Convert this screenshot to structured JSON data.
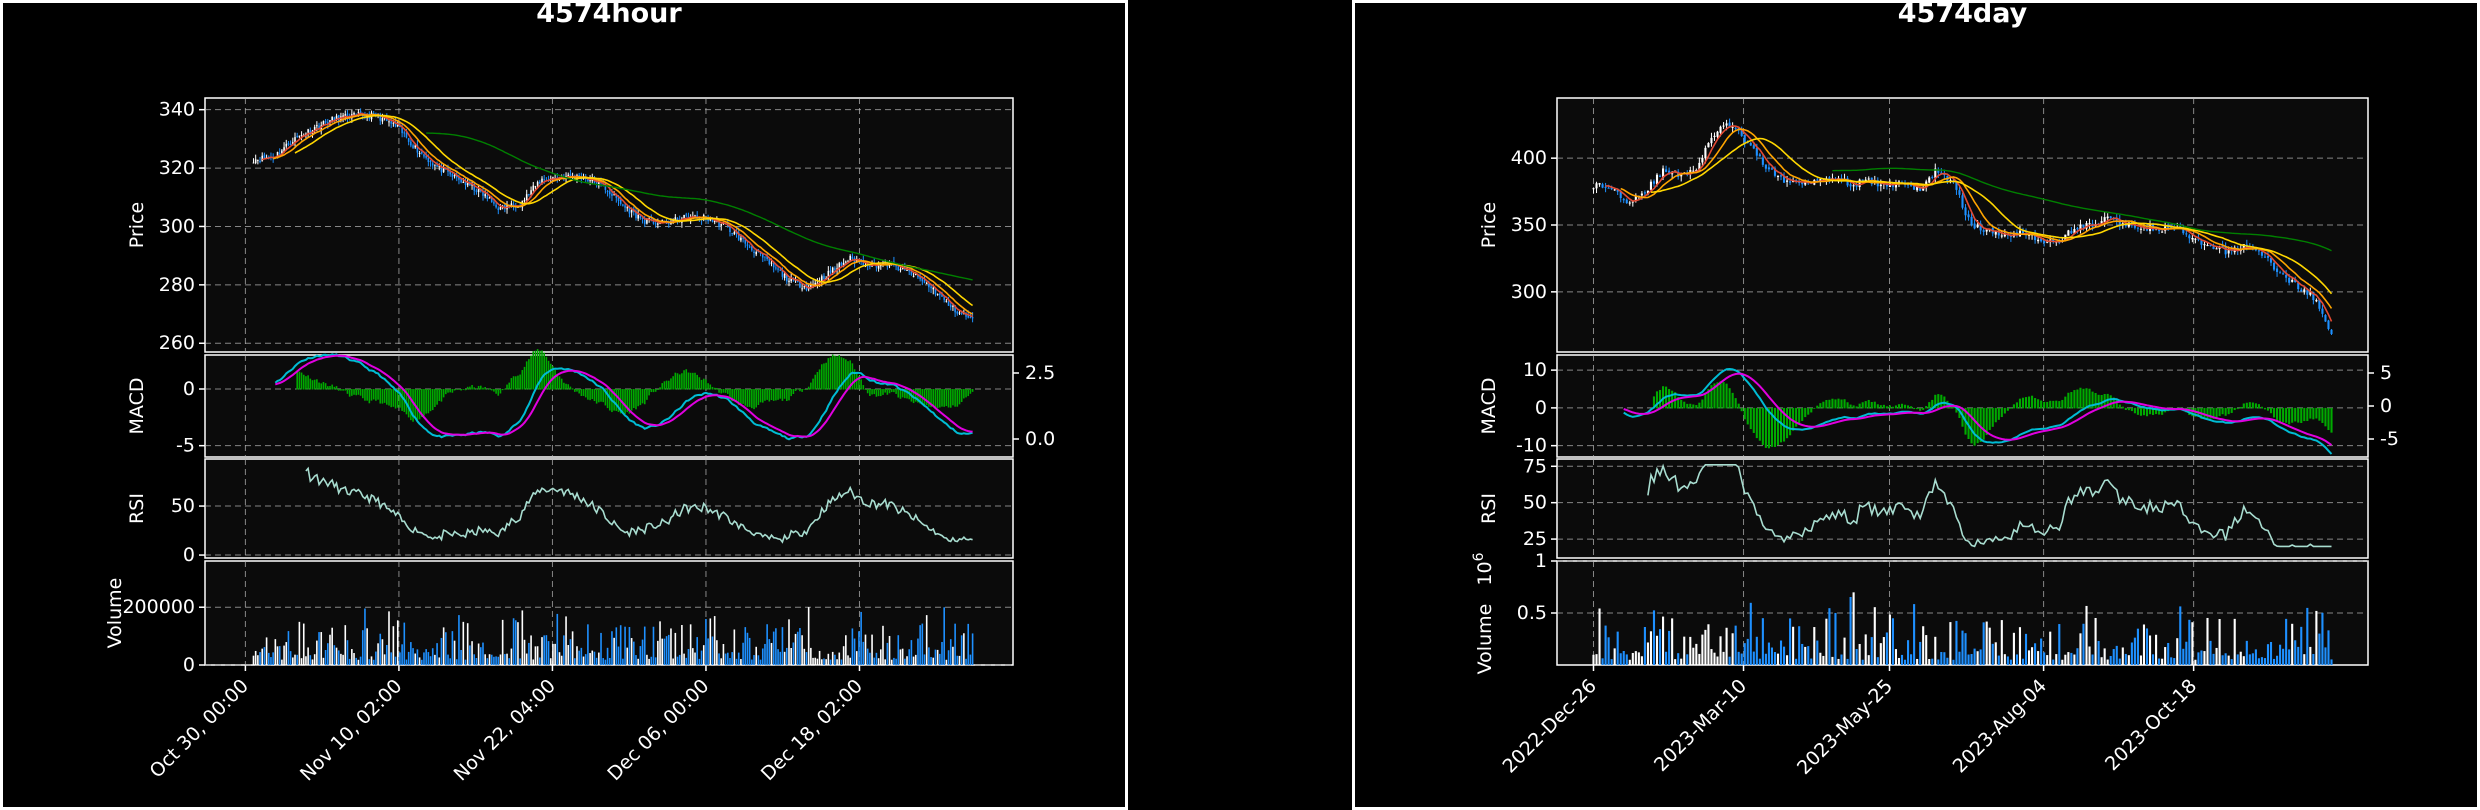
{
  "chart_data": [
    {
      "type": "candlestick",
      "title": "4574hour",
      "x_tick_labels": [
        "Oct 30, 00:00",
        "Nov 10, 02:00",
        "Nov 22, 04:00",
        "Dec 06, 00:00",
        "Dec 18, 02:00"
      ],
      "price": {
        "ylabel": "Price",
        "ylim": [
          257,
          344
        ],
        "ticks": [
          260,
          280,
          300,
          320,
          340
        ],
        "close": [
          323,
          324,
          330,
          334,
          337,
          338,
          338,
          334,
          326,
          320,
          316,
          312,
          306,
          308,
          316,
          317,
          317,
          314,
          307,
          302,
          301,
          303,
          303,
          300,
          294,
          288,
          282,
          279,
          284,
          289,
          287,
          287,
          284,
          279,
          272,
          268
        ],
        "moving_average_colors": [
          "#e34a33",
          "#ffa500",
          "#ffd700",
          "#008000"
        ]
      },
      "macd": {
        "ylabel": "MACD",
        "left_ticks": [
          -5,
          0
        ],
        "right_ticks": [
          0.0,
          2.5
        ],
        "macd_color": "#00bcd4",
        "signal_color": "#e000e0",
        "histogram_color": "#00aa00"
      },
      "rsi": {
        "ylabel": "RSI",
        "ylim": [
          -3,
          98
        ],
        "ticks": [
          0,
          50
        ],
        "color": "#a8ddd0"
      },
      "volume": {
        "ylabel": "Volume",
        "ylim": [
          0,
          360000
        ],
        "ticks": [
          0,
          200000
        ],
        "colors": [
          "#1e90ff",
          "#ffffff"
        ]
      }
    },
    {
      "type": "candlestick",
      "title": "4574day",
      "x_tick_labels": [
        "2022-Dec-26",
        "2023-Mar-10",
        "2023-May-25",
        "2023-Aug-04",
        "2023-Oct-18"
      ],
      "price": {
        "ylabel": "Price",
        "ylim": [
          255,
          445
        ],
        "ticks": [
          300,
          350,
          400
        ],
        "close": [
          380,
          378,
          368,
          375,
          390,
          388,
          392,
          418,
          426,
          410,
          395,
          383,
          382,
          384,
          386,
          380,
          383,
          379,
          383,
          375,
          392,
          380,
          350,
          345,
          343,
          345,
          339,
          336,
          348,
          350,
          355,
          350,
          349,
          346,
          348,
          338,
          333,
          330,
          335,
          328,
          313,
          305,
          295,
          268
        ],
        "moving_average_colors": [
          "#e34a33",
          "#ffa500",
          "#ffd700",
          "#008000"
        ]
      },
      "macd": {
        "ylabel": "MACD",
        "left_ticks": [
          -10,
          0,
          10
        ],
        "right_ticks": [
          -5,
          0,
          5
        ],
        "macd_color": "#00bcd4",
        "signal_color": "#e000e0",
        "histogram_color": "#00aa00"
      },
      "rsi": {
        "ylabel": "RSI",
        "ylim": [
          12,
          80
        ],
        "ticks": [
          25,
          50,
          75
        ],
        "color": "#a8ddd0"
      },
      "volume": {
        "ylabel": "Volume",
        "multiplier": "10",
        "multiplier_exponent": "6",
        "ylim": [
          0,
          1.0
        ],
        "ticks": [
          0.5,
          1.0
        ],
        "colors": [
          "#1e90ff",
          "#ffffff"
        ]
      }
    }
  ]
}
